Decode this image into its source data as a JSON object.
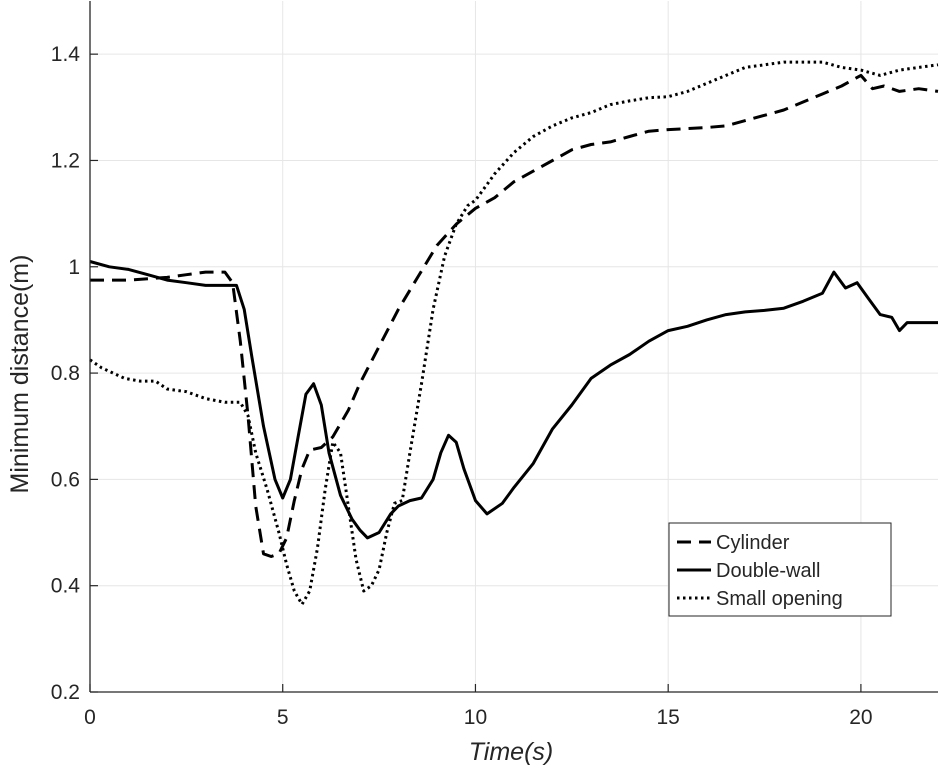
{
  "chart_data": {
    "type": "line",
    "title": "",
    "xlabel": "Time(s)",
    "ylabel": "Minimum distance(m)",
    "xlim": [
      0,
      22
    ],
    "ylim": [
      0.2,
      1.5
    ],
    "xticks": [
      0,
      5,
      10,
      15,
      20
    ],
    "yticks": [
      0.2,
      0.4,
      0.6,
      0.8,
      1,
      1.2,
      1.4
    ],
    "ytick_labels": [
      "0.2",
      "0.4",
      "0.6",
      "0.8",
      "1",
      "1.2",
      "1.4"
    ],
    "grid": true,
    "legend_position": "lower-right",
    "series": [
      {
        "name": "Cylinder",
        "style": "dashed",
        "color": "#000000",
        "points": [
          [
            0,
            0.975
          ],
          [
            1,
            0.975
          ],
          [
            2,
            0.98
          ],
          [
            2.5,
            0.985
          ],
          [
            3,
            0.99
          ],
          [
            3.5,
            0.99
          ],
          [
            3.7,
            0.97
          ],
          [
            3.9,
            0.86
          ],
          [
            4.1,
            0.72
          ],
          [
            4.3,
            0.55
          ],
          [
            4.5,
            0.46
          ],
          [
            4.7,
            0.455
          ],
          [
            4.9,
            0.46
          ],
          [
            5.1,
            0.49
          ],
          [
            5.3,
            0.56
          ],
          [
            5.5,
            0.62
          ],
          [
            5.7,
            0.655
          ],
          [
            6.0,
            0.66
          ],
          [
            6.3,
            0.68
          ],
          [
            6.7,
            0.73
          ],
          [
            7.0,
            0.78
          ],
          [
            7.5,
            0.85
          ],
          [
            8.0,
            0.92
          ],
          [
            8.5,
            0.98
          ],
          [
            9.0,
            1.04
          ],
          [
            9.5,
            1.08
          ],
          [
            10.0,
            1.11
          ],
          [
            10.5,
            1.13
          ],
          [
            11,
            1.16
          ],
          [
            11.5,
            1.18
          ],
          [
            12,
            1.2
          ],
          [
            12.5,
            1.22
          ],
          [
            13,
            1.23
          ],
          [
            13.5,
            1.235
          ],
          [
            14,
            1.245
          ],
          [
            14.5,
            1.255
          ],
          [
            15,
            1.258
          ],
          [
            15.5,
            1.26
          ],
          [
            16,
            1.262
          ],
          [
            16.5,
            1.265
          ],
          [
            17,
            1.275
          ],
          [
            17.5,
            1.285
          ],
          [
            18,
            1.295
          ],
          [
            18.5,
            1.31
          ],
          [
            19,
            1.325
          ],
          [
            19.5,
            1.34
          ],
          [
            20,
            1.36
          ],
          [
            20.3,
            1.335
          ],
          [
            20.6,
            1.34
          ],
          [
            21,
            1.33
          ],
          [
            21.5,
            1.335
          ],
          [
            22,
            1.33
          ]
        ]
      },
      {
        "name": "Double-wall",
        "style": "solid",
        "color": "#000000",
        "points": [
          [
            0,
            1.01
          ],
          [
            0.5,
            1.0
          ],
          [
            1,
            0.995
          ],
          [
            1.5,
            0.985
          ],
          [
            2,
            0.975
          ],
          [
            2.5,
            0.97
          ],
          [
            3,
            0.965
          ],
          [
            3.5,
            0.965
          ],
          [
            3.8,
            0.965
          ],
          [
            4.0,
            0.92
          ],
          [
            4.2,
            0.83
          ],
          [
            4.5,
            0.7
          ],
          [
            4.8,
            0.6
          ],
          [
            5.0,
            0.565
          ],
          [
            5.2,
            0.6
          ],
          [
            5.4,
            0.68
          ],
          [
            5.6,
            0.76
          ],
          [
            5.8,
            0.78
          ],
          [
            6.0,
            0.74
          ],
          [
            6.2,
            0.65
          ],
          [
            6.5,
            0.57
          ],
          [
            6.8,
            0.525
          ],
          [
            7.0,
            0.505
          ],
          [
            7.2,
            0.49
          ],
          [
            7.5,
            0.5
          ],
          [
            7.8,
            0.535
          ],
          [
            8.0,
            0.55
          ],
          [
            8.3,
            0.56
          ],
          [
            8.6,
            0.565
          ],
          [
            8.9,
            0.6
          ],
          [
            9.1,
            0.65
          ],
          [
            9.3,
            0.683
          ],
          [
            9.5,
            0.67
          ],
          [
            9.7,
            0.62
          ],
          [
            10.0,
            0.56
          ],
          [
            10.3,
            0.535
          ],
          [
            10.7,
            0.555
          ],
          [
            11.0,
            0.585
          ],
          [
            11.5,
            0.63
          ],
          [
            12,
            0.695
          ],
          [
            12.5,
            0.74
          ],
          [
            13,
            0.79
          ],
          [
            13.5,
            0.815
          ],
          [
            14,
            0.835
          ],
          [
            14.5,
            0.86
          ],
          [
            15,
            0.88
          ],
          [
            15.5,
            0.888
          ],
          [
            16,
            0.9
          ],
          [
            16.5,
            0.91
          ],
          [
            17,
            0.915
          ],
          [
            17.5,
            0.918
          ],
          [
            18,
            0.922
          ],
          [
            18.5,
            0.935
          ],
          [
            19,
            0.95
          ],
          [
            19.3,
            0.99
          ],
          [
            19.6,
            0.96
          ],
          [
            19.9,
            0.97
          ],
          [
            20.2,
            0.94
          ],
          [
            20.5,
            0.91
          ],
          [
            20.8,
            0.905
          ],
          [
            21.0,
            0.88
          ],
          [
            21.2,
            0.895
          ],
          [
            22,
            0.895
          ]
        ]
      },
      {
        "name": "Small opening",
        "style": "dotted",
        "color": "#000000",
        "points": [
          [
            0,
            0.825
          ],
          [
            0.3,
            0.81
          ],
          [
            0.6,
            0.8
          ],
          [
            0.9,
            0.79
          ],
          [
            1.3,
            0.785
          ],
          [
            1.7,
            0.785
          ],
          [
            2.0,
            0.77
          ],
          [
            2.5,
            0.765
          ],
          [
            3.0,
            0.752
          ],
          [
            3.5,
            0.745
          ],
          [
            3.9,
            0.745
          ],
          [
            4.1,
            0.72
          ],
          [
            4.3,
            0.65
          ],
          [
            4.6,
            0.58
          ],
          [
            4.9,
            0.5
          ],
          [
            5.1,
            0.44
          ],
          [
            5.3,
            0.39
          ],
          [
            5.5,
            0.365
          ],
          [
            5.7,
            0.39
          ],
          [
            5.9,
            0.47
          ],
          [
            6.1,
            0.58
          ],
          [
            6.3,
            0.67
          ],
          [
            6.5,
            0.65
          ],
          [
            6.7,
            0.55
          ],
          [
            6.9,
            0.45
          ],
          [
            7.1,
            0.39
          ],
          [
            7.3,
            0.4
          ],
          [
            7.5,
            0.43
          ],
          [
            7.7,
            0.5
          ],
          [
            7.9,
            0.555
          ],
          [
            8.1,
            0.56
          ],
          [
            8.3,
            0.65
          ],
          [
            8.6,
            0.78
          ],
          [
            8.9,
            0.92
          ],
          [
            9.2,
            1.02
          ],
          [
            9.5,
            1.08
          ],
          [
            9.8,
            1.115
          ],
          [
            10.0,
            1.125
          ],
          [
            10.5,
            1.175
          ],
          [
            11,
            1.215
          ],
          [
            11.5,
            1.245
          ],
          [
            12,
            1.265
          ],
          [
            12.5,
            1.28
          ],
          [
            13,
            1.29
          ],
          [
            13.5,
            1.305
          ],
          [
            14,
            1.312
          ],
          [
            14.5,
            1.318
          ],
          [
            15,
            1.32
          ],
          [
            15.5,
            1.33
          ],
          [
            16,
            1.345
          ],
          [
            16.5,
            1.36
          ],
          [
            17,
            1.375
          ],
          [
            17.5,
            1.38
          ],
          [
            18,
            1.385
          ],
          [
            18.5,
            1.385
          ],
          [
            19,
            1.385
          ],
          [
            19.5,
            1.375
          ],
          [
            20,
            1.37
          ],
          [
            20.5,
            1.36
          ],
          [
            21,
            1.37
          ],
          [
            21.5,
            1.375
          ],
          [
            22,
            1.38
          ]
        ]
      }
    ]
  }
}
